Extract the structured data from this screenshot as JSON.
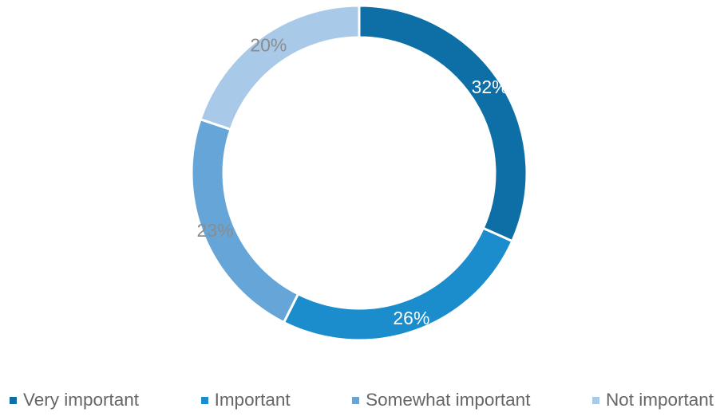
{
  "chart_data": {
    "type": "pie",
    "subtype": "donut",
    "title": "",
    "categories": [
      "Very important",
      "Important",
      "Somewhat important",
      "Not important"
    ],
    "values": [
      32,
      26,
      23,
      20
    ],
    "labels": [
      "32%",
      "26%",
      "23%",
      "20%"
    ],
    "colors": [
      "#0d6fa6",
      "#1b8ccc",
      "#65a5d8",
      "#a8c9e8"
    ],
    "label_colors": [
      "#ffffff",
      "#ffffff",
      "#8c8c8c",
      "#8c8c8c"
    ],
    "legend_position": "bottom",
    "start_angle": "top",
    "direction": "clockwise"
  }
}
